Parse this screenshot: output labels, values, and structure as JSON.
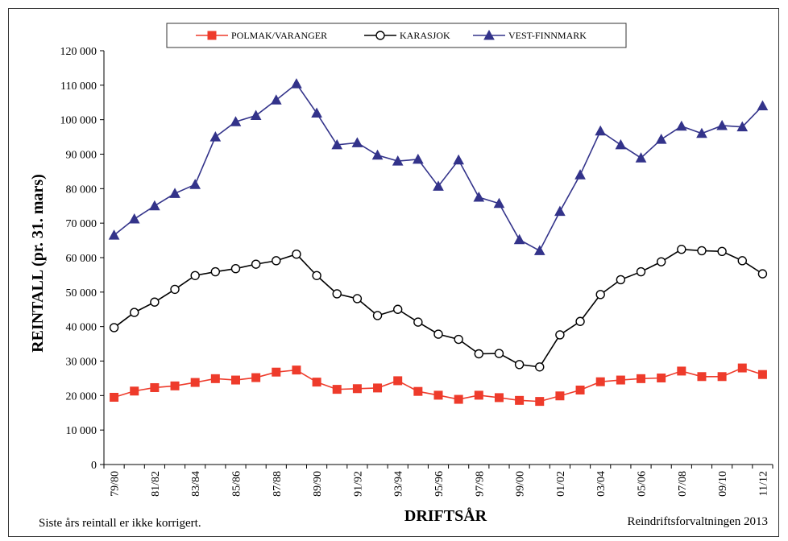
{
  "chart_data": {
    "type": "line",
    "ylabel": "REINTALL (pr. 31. mars)",
    "xlabel": "DRIFTSÅR",
    "ylim": [
      0,
      120000
    ],
    "y_ticks": [
      "0",
      "10 000",
      "20 000",
      "30 000",
      "40 000",
      "50 000",
      "60 000",
      "70 000",
      "80 000",
      "90 000",
      "100 000",
      "110 000",
      "120 000"
    ],
    "grid": false,
    "legend_position": "top",
    "categories": [
      "79/80",
      "80/81",
      "81/82",
      "82/83",
      "83/84",
      "84/85",
      "85/86",
      "86/87",
      "87/88",
      "88/89",
      "89/90",
      "90/91",
      "91/92",
      "92/93",
      "93/94",
      "94/95",
      "95/96",
      "96/97",
      "97/98",
      "98/99",
      "99/00",
      "00/01",
      "01/02",
      "02/03",
      "03/04",
      "04/05",
      "05/06",
      "06/07",
      "07/08",
      "08/09",
      "09/10",
      "10/11",
      "11/12"
    ],
    "x_tick_labels": [
      "79/80",
      "",
      "81/82",
      "",
      "83/84",
      "",
      "85/86",
      "",
      "87/88",
      "",
      "89/90",
      "",
      "91/92",
      "",
      "93/94",
      "",
      "95/96",
      "",
      "97/98",
      "",
      "99/00",
      "",
      "01/02",
      "",
      "03/04",
      "",
      "05/06",
      "",
      "07/08",
      "",
      "09/10",
      "",
      "11/12"
    ],
    "series": [
      {
        "name": "POLMAK/VARANGER",
        "color": "#ee3b2b",
        "marker": "square",
        "values": [
          19500,
          21300,
          22300,
          22800,
          23800,
          24900,
          24500,
          25200,
          26800,
          27400,
          23900,
          21800,
          22000,
          22200,
          24300,
          21200,
          20100,
          18900,
          20100,
          19400,
          18600,
          18300,
          19900,
          21600,
          24000,
          24500,
          24900,
          25100,
          27100,
          25500,
          25500,
          28000,
          26100
        ]
      },
      {
        "name": "KARASJOK",
        "color": "#000000",
        "marker": "circle",
        "values": [
          39700,
          44100,
          47100,
          50800,
          54800,
          55900,
          56800,
          58100,
          59100,
          61000,
          54800,
          49500,
          48100,
          43200,
          45000,
          41300,
          37800,
          36300,
          32100,
          32200,
          29000,
          28300,
          37600,
          41500,
          49300,
          53600,
          55900,
          58800,
          62400,
          62000,
          61800,
          59100,
          55300
        ]
      },
      {
        "name": "VEST-FINNMARK",
        "color": "#33338a",
        "marker": "triangle",
        "values": [
          66500,
          71200,
          75000,
          78600,
          81200,
          95000,
          99400,
          101200,
          105700,
          110400,
          101900,
          92700,
          93300,
          89700,
          88000,
          88500,
          80700,
          88300,
          77500,
          75700,
          65200,
          62000,
          73400,
          84000,
          96700,
          92700,
          88900,
          94300,
          98100,
          96000,
          98300,
          97900,
          104000
        ]
      }
    ],
    "annotations": {
      "left_note": "Siste års reintall er ikke korrigert.",
      "right_note": "Reindriftsforvaltningen 2013"
    }
  }
}
